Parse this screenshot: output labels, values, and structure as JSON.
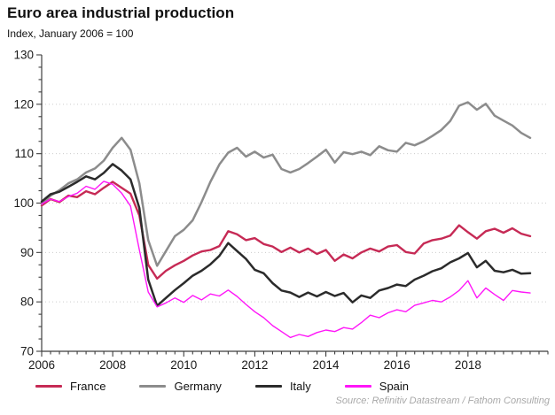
{
  "source_note": "Source: Refinitiv Datastream / Fathom Consulting",
  "colors": {
    "axis": "#3f3f3f",
    "grid": "#cccccc",
    "tick_label": "#1a1a1a",
    "title": "#111111",
    "source": "#a9a9a9"
  },
  "chart_data": {
    "type": "line",
    "title": "Euro area industrial production",
    "subtitle": "Index, January 2006 = 100",
    "xlabel": "",
    "ylabel": "",
    "xlim": [
      2006,
      2020.25
    ],
    "ylim": [
      70,
      130
    ],
    "yticks": [
      70,
      80,
      90,
      100,
      110,
      120,
      130
    ],
    "ytick_minor_step": 2.5,
    "xticks": [
      2006,
      2008,
      2010,
      2012,
      2014,
      2016,
      2018
    ],
    "xtick_minor_step": 0.25,
    "grid": "horizontal-dotted",
    "legend_position": "bottom",
    "x": [
      2006.0,
      2006.25,
      2006.5,
      2006.75,
      2007.0,
      2007.25,
      2007.5,
      2007.75,
      2008.0,
      2008.25,
      2008.5,
      2008.75,
      2009.0,
      2009.25,
      2009.5,
      2009.75,
      2010.0,
      2010.25,
      2010.5,
      2010.75,
      2011.0,
      2011.25,
      2011.5,
      2011.75,
      2012.0,
      2012.25,
      2012.5,
      2012.75,
      2013.0,
      2013.25,
      2013.5,
      2013.75,
      2014.0,
      2014.25,
      2014.5,
      2014.75,
      2015.0,
      2015.25,
      2015.5,
      2015.75,
      2016.0,
      2016.25,
      2016.5,
      2016.75,
      2017.0,
      2017.25,
      2017.5,
      2017.75,
      2018.0,
      2018.25,
      2018.5,
      2018.75,
      2019.0,
      2019.25,
      2019.5,
      2019.75
    ],
    "series": [
      {
        "name": "France",
        "color": "#c62a55",
        "line_width": 2.4,
        "values": [
          99.5,
          100.8,
          100.2,
          101.5,
          101.2,
          102.4,
          101.8,
          103.1,
          104.3,
          103.1,
          101.9,
          97.5,
          87.5,
          84.7,
          86.3,
          87.4,
          88.3,
          89.4,
          90.2,
          90.5,
          91.3,
          94.3,
          93.7,
          92.5,
          92.9,
          91.7,
          91.2,
          90.1,
          91.0,
          90.0,
          90.8,
          89.7,
          90.5,
          88.3,
          89.6,
          88.8,
          90.0,
          90.8,
          90.2,
          91.2,
          91.5,
          90.1,
          89.8,
          91.8,
          92.5,
          92.8,
          93.4,
          95.5,
          94.1,
          92.8,
          94.3,
          94.8,
          94.0,
          94.9,
          93.8,
          93.3
        ]
      },
      {
        "name": "Germany",
        "color": "#8c8c8c",
        "line_width": 2.5,
        "values": [
          99.8,
          101.5,
          102.6,
          104.0,
          104.8,
          106.2,
          107.0,
          108.6,
          111.2,
          113.2,
          110.8,
          104.0,
          92.5,
          87.3,
          90.3,
          93.3,
          94.6,
          96.5,
          100.2,
          104.3,
          107.8,
          110.2,
          111.2,
          109.4,
          110.4,
          109.2,
          109.8,
          106.9,
          106.2,
          106.9,
          108.1,
          109.4,
          110.8,
          108.2,
          110.3,
          109.9,
          110.4,
          109.7,
          111.5,
          110.7,
          110.4,
          112.2,
          111.7,
          112.5,
          113.6,
          114.8,
          116.6,
          119.7,
          120.4,
          118.9,
          120.1,
          117.7,
          116.7,
          115.7,
          114.2,
          113.2
        ]
      },
      {
        "name": "Italy",
        "color": "#2b2b2b",
        "line_width": 2.5,
        "values": [
          100.3,
          101.8,
          102.3,
          103.3,
          104.3,
          105.4,
          104.8,
          106.1,
          107.9,
          106.6,
          104.8,
          99.0,
          84.5,
          79.2,
          80.8,
          82.4,
          83.8,
          85.3,
          86.3,
          87.6,
          89.3,
          91.9,
          90.3,
          88.7,
          86.5,
          85.8,
          83.8,
          82.3,
          81.9,
          81.0,
          81.9,
          81.1,
          82.0,
          81.2,
          81.8,
          79.9,
          81.3,
          80.8,
          82.3,
          82.8,
          83.5,
          83.2,
          84.5,
          85.3,
          86.2,
          86.8,
          88.0,
          88.8,
          89.9,
          87.0,
          88.3,
          86.3,
          86.0,
          86.5,
          85.7,
          85.8
        ]
      },
      {
        "name": "Spain",
        "color": "#ff16f8",
        "line_width": 1.4,
        "values": [
          99.8,
          100.8,
          100.3,
          101.3,
          102.0,
          103.4,
          102.8,
          104.4,
          103.8,
          102.0,
          99.4,
          90.5,
          82.0,
          79.0,
          79.8,
          80.8,
          79.9,
          81.3,
          80.4,
          81.6,
          81.2,
          82.4,
          81.1,
          79.5,
          78.0,
          76.8,
          75.2,
          74.0,
          72.8,
          73.4,
          73.0,
          73.8,
          74.3,
          74.0,
          74.8,
          74.5,
          75.8,
          77.3,
          76.8,
          77.8,
          78.4,
          78.0,
          79.3,
          79.8,
          80.3,
          80.0,
          81.0,
          82.3,
          84.3,
          80.8,
          82.8,
          81.5,
          80.3,
          82.3,
          82.0,
          81.8
        ]
      }
    ]
  }
}
